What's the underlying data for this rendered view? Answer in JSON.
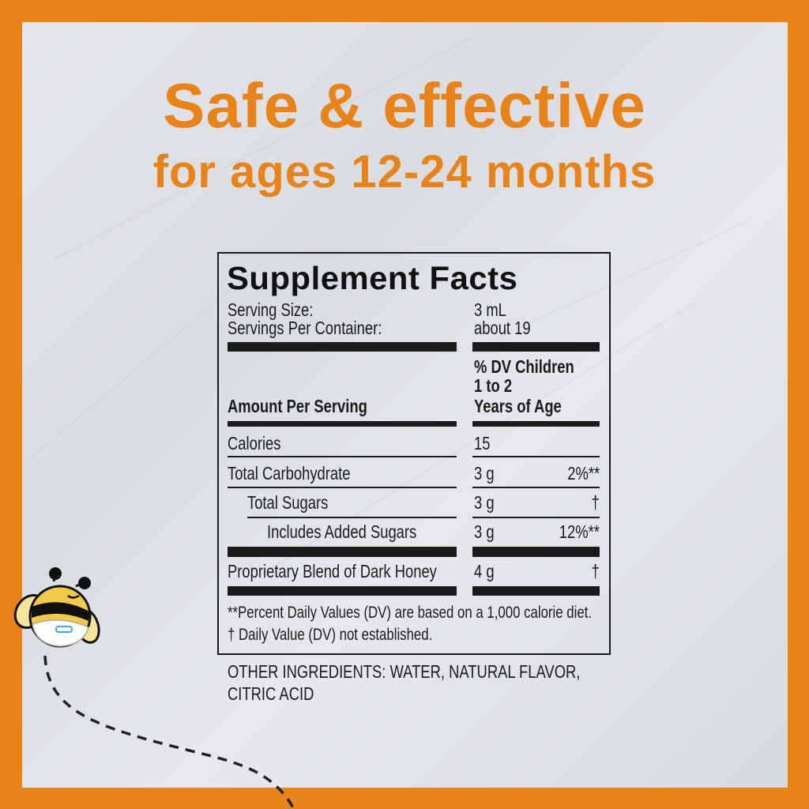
{
  "headline": {
    "line1": "Safe & effective",
    "line2": "for ages 12-24 months"
  },
  "colors": {
    "brand_orange": "#E8831A",
    "text": "#1B1B1B"
  },
  "label": {
    "title": "Supplement Facts",
    "serving_size_label": "Serving Size:",
    "serving_size_value": "3 mL",
    "servings_label": "Servings Per Container:",
    "servings_value": "about 19",
    "amount_header": "Amount Per Serving",
    "dv_header": [
      "% DV Children",
      "1 to 2",
      "Years of Age"
    ],
    "rows": [
      {
        "name": "Calories",
        "amount": "15",
        "dv": ""
      },
      {
        "name": "Total Carbohydrate",
        "amount": "3 g",
        "dv": "2%**"
      },
      {
        "name": "Total Sugars",
        "amount": "3 g",
        "dv": "†"
      },
      {
        "name": "Includes Added Sugars",
        "amount": "3 g",
        "dv": "12%**"
      },
      {
        "name": "Proprietary Blend of Dark Honey",
        "amount": "4 g",
        "dv": "†"
      }
    ],
    "footnotes": [
      "**Percent Daily Values (DV) are based on a 1,000 calorie diet.",
      "† Daily Value (DV) not established."
    ]
  },
  "other_ingredients": [
    "OTHER INGREDIENTS: WATER, NATURAL FLAVOR,",
    "CITRIC ACID"
  ],
  "mascot": {
    "icon": "bee-mascot-icon"
  }
}
